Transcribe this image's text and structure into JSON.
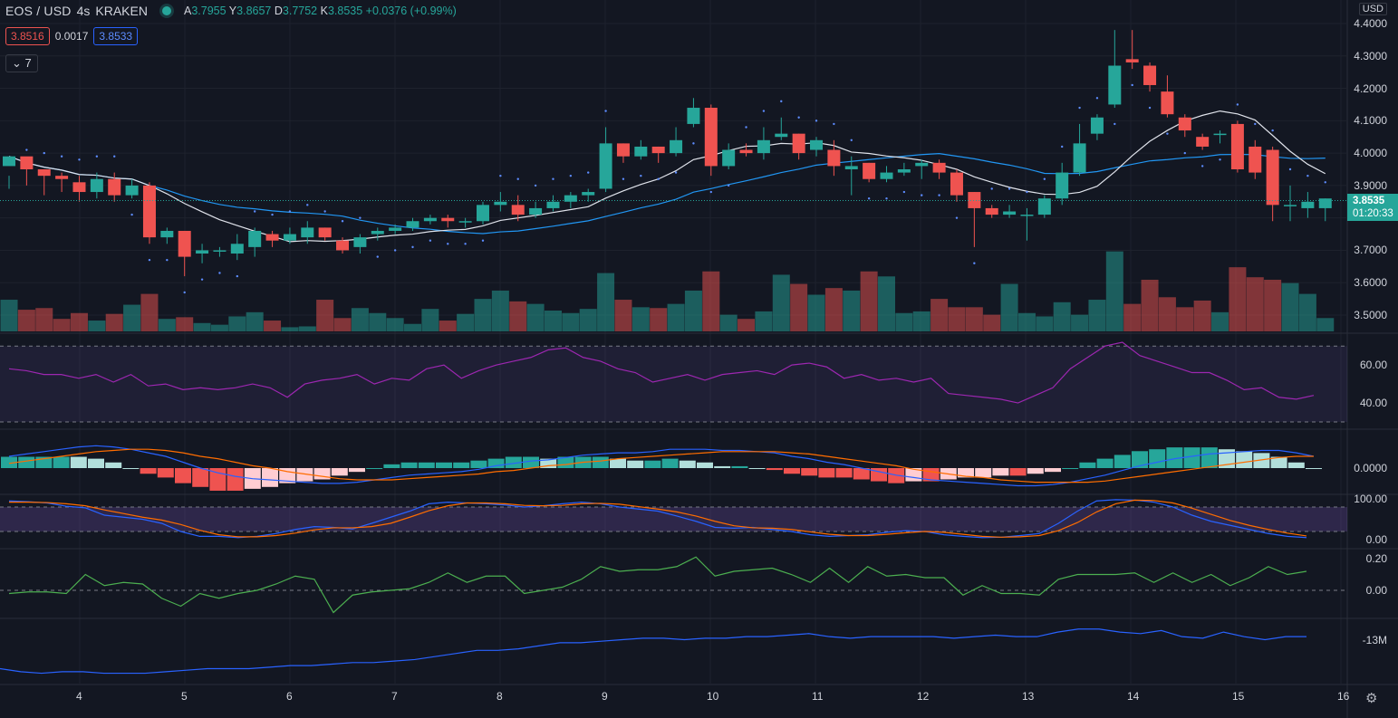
{
  "header": {
    "symbol": "EOS / USD",
    "interval": "4s",
    "exchange": "KRAKEN",
    "ohlc": {
      "open_label": "A",
      "open": "3.7955",
      "high_label": "Y",
      "high": "3.8657",
      "low_label": "D",
      "low": "3.7752",
      "close_label": "K",
      "close": "3.8535",
      "change": "+0.0376 (+0.99%)"
    },
    "sell_price": "3.8516",
    "spread": "0.0017",
    "buy_price": "3.8533",
    "collapse_label": "7"
  },
  "price_axis": {
    "currency": "USD",
    "labels": [
      "4.4000",
      "4.3000",
      "4.2000",
      "4.1000",
      "4.0000",
      "3.9000",
      "3.7000",
      "3.6000",
      "3.5000"
    ],
    "last_price": "3.8535",
    "countdown": "01:20:33"
  },
  "rsi_axis": [
    "60.00",
    "40.00"
  ],
  "macd_axis": [
    "0.0000"
  ],
  "stoch_axis": [
    "100.00",
    "0.00"
  ],
  "osc_axis": [
    "0.20",
    "0.00"
  ],
  "obv_axis": [
    "-13M"
  ],
  "time_axis": [
    "4",
    "5",
    "6",
    "7",
    "8",
    "9",
    "10",
    "11",
    "12",
    "13",
    "14",
    "15",
    "16"
  ],
  "colors": {
    "bg": "#131722",
    "up": "#26a69a",
    "down": "#ef5350",
    "grid": "#1e222d",
    "rsi": "#9c27b0",
    "macd": "#2962ff",
    "signal": "#ff6d00",
    "osc": "#4caf50",
    "obv": "#2962ff"
  },
  "chart_data": {
    "type": "candlestick",
    "candles": [
      [
        3.96,
        3.99,
        3.93,
        3.89
      ],
      [
        3.99,
        3.95,
        3.96,
        3.9
      ],
      [
        3.95,
        3.93,
        3.95,
        3.87
      ],
      [
        3.93,
        3.92,
        3.94,
        3.88
      ],
      [
        3.91,
        3.88,
        3.93,
        3.85
      ],
      [
        3.88,
        3.92,
        3.94,
        3.86
      ],
      [
        3.92,
        3.87,
        3.94,
        3.85
      ],
      [
        3.87,
        3.9,
        3.92,
        3.86
      ],
      [
        3.9,
        3.74,
        3.91,
        3.72
      ],
      [
        3.74,
        3.76,
        3.77,
        3.72
      ],
      [
        3.76,
        3.68,
        3.76,
        3.62
      ],
      [
        3.69,
        3.7,
        3.72,
        3.66
      ],
      [
        3.7,
        3.7,
        3.71,
        3.68
      ],
      [
        3.69,
        3.72,
        3.75,
        3.67
      ],
      [
        3.71,
        3.76,
        3.77,
        3.68
      ],
      [
        3.75,
        3.73,
        3.76,
        3.71
      ],
      [
        3.73,
        3.75,
        3.77,
        3.72
      ],
      [
        3.74,
        3.77,
        3.79,
        3.72
      ],
      [
        3.77,
        3.74,
        3.77,
        3.73
      ],
      [
        3.73,
        3.7,
        3.74,
        3.69
      ],
      [
        3.71,
        3.74,
        3.75,
        3.69
      ],
      [
        3.75,
        3.76,
        3.77,
        3.73
      ],
      [
        3.76,
        3.77,
        3.78,
        3.75
      ],
      [
        3.77,
        3.79,
        3.8,
        3.76
      ],
      [
        3.79,
        3.8,
        3.81,
        3.78
      ],
      [
        3.8,
        3.79,
        3.81,
        3.77
      ],
      [
        3.79,
        3.79,
        3.8,
        3.77
      ],
      [
        3.79,
        3.84,
        3.85,
        3.78
      ],
      [
        3.84,
        3.85,
        3.88,
        3.82
      ],
      [
        3.84,
        3.81,
        3.87,
        3.79
      ],
      [
        3.81,
        3.83,
        3.85,
        3.8
      ],
      [
        3.83,
        3.85,
        3.87,
        3.82
      ],
      [
        3.85,
        3.87,
        3.88,
        3.83
      ],
      [
        3.87,
        3.88,
        3.89,
        3.85
      ],
      [
        3.89,
        4.03,
        4.08,
        3.88
      ],
      [
        4.03,
        3.99,
        4.03,
        3.97
      ],
      [
        3.99,
        4.02,
        4.04,
        3.98
      ],
      [
        4.02,
        4.0,
        4.02,
        3.97
      ],
      [
        4.0,
        4.04,
        4.08,
        3.99
      ],
      [
        4.09,
        4.14,
        4.17,
        4.08
      ],
      [
        4.14,
        3.96,
        4.15,
        3.93
      ],
      [
        3.96,
        4.01,
        4.03,
        3.95
      ],
      [
        4.01,
        4.0,
        4.03,
        3.99
      ],
      [
        4.0,
        4.04,
        4.08,
        3.98
      ],
      [
        4.05,
        4.06,
        4.11,
        4.04
      ],
      [
        4.06,
        4.0,
        4.06,
        3.98
      ],
      [
        4.01,
        4.04,
        4.05,
        3.99
      ],
      [
        4.01,
        3.96,
        4.04,
        3.93
      ],
      [
        3.95,
        3.96,
        3.99,
        3.87
      ],
      [
        3.97,
        3.92,
        3.97,
        3.91
      ],
      [
        3.92,
        3.94,
        3.96,
        3.91
      ],
      [
        3.94,
        3.95,
        3.97,
        3.93
      ],
      [
        3.96,
        3.97,
        3.98,
        3.92
      ],
      [
        3.97,
        3.94,
        3.98,
        3.92
      ],
      [
        3.94,
        3.87,
        3.95,
        3.85
      ],
      [
        3.88,
        3.83,
        3.88,
        3.71
      ],
      [
        3.83,
        3.81,
        3.84,
        3.8
      ],
      [
        3.81,
        3.82,
        3.84,
        3.8
      ],
      [
        3.81,
        3.81,
        3.83,
        3.73
      ],
      [
        3.81,
        3.86,
        3.87,
        3.8
      ],
      [
        3.86,
        3.94,
        3.97,
        3.84
      ],
      [
        3.94,
        4.03,
        4.09,
        3.93
      ],
      [
        4.06,
        4.11,
        4.12,
        4.04
      ],
      [
        4.15,
        4.27,
        4.38,
        4.14
      ],
      [
        4.29,
        4.28,
        4.38,
        4.26
      ],
      [
        4.27,
        4.21,
        4.28,
        4.19
      ],
      [
        4.19,
        4.12,
        4.24,
        4.11
      ],
      [
        4.11,
        4.07,
        4.12,
        4.05
      ],
      [
        4.05,
        4.02,
        4.06,
        4.01
      ],
      [
        4.06,
        4.06,
        4.07,
        4.03
      ],
      [
        4.09,
        3.95,
        4.1,
        3.94
      ],
      [
        4.02,
        3.94,
        4.04,
        3.92
      ],
      [
        4.01,
        3.84,
        4.02,
        3.79
      ],
      [
        3.84,
        3.84,
        3.9,
        3.79
      ],
      [
        3.83,
        3.85,
        3.88,
        3.8
      ],
      [
        3.83,
        3.86,
        3.86,
        3.79
      ]
    ],
    "volume": [
      38,
      26,
      28,
      15,
      22,
      13,
      21,
      32,
      45,
      15,
      17,
      10,
      8,
      18,
      23,
      13,
      5,
      6,
      38,
      16,
      28,
      22,
      16,
      9,
      27,
      13,
      21,
      39,
      49,
      36,
      33,
      25,
      22,
      27,
      70,
      38,
      29,
      28,
      33,
      49,
      72,
      20,
      15,
      24,
      68,
      57,
      44,
      52,
      49,
      72,
      66,
      22,
      24,
      39,
      29,
      29,
      20,
      57,
      22,
      18,
      35,
      20,
      38,
      96,
      33,
      62,
      41,
      29,
      37,
      23,
      77,
      65,
      62,
      58,
      45,
      16
    ],
    "rsi": [
      58,
      57,
      55,
      55,
      53,
      55,
      51,
      55,
      49,
      50,
      47,
      48,
      47,
      48,
      50,
      48,
      43,
      50,
      52,
      53,
      55,
      50,
      53,
      52,
      58,
      60,
      53,
      57,
      60,
      62,
      64,
      68,
      69,
      64,
      62,
      58,
      56,
      51,
      53,
      55,
      52,
      55,
      56,
      57,
      55,
      60,
      61,
      59,
      53,
      55,
      52,
      53,
      51,
      53,
      45,
      44,
      43,
      42,
      40,
      44,
      48,
      58,
      64,
      70,
      72,
      65,
      62,
      59,
      56,
      56,
      52,
      47,
      48,
      43,
      42,
      44
    ],
    "rsi_range": [
      30,
      72
    ],
    "macd": [
      0.01,
      0.012,
      0.014,
      0.016,
      0.018,
      0.019,
      0.018,
      0.016,
      0.013,
      0.01,
      0.005,
      0.0,
      -0.004,
      -0.007,
      -0.009,
      -0.01,
      -0.011,
      -0.012,
      -0.013,
      -0.013,
      -0.012,
      -0.01,
      -0.008,
      -0.006,
      -0.005,
      -0.004,
      -0.003,
      -0.001,
      0.002,
      0.004,
      0.006,
      0.007,
      0.009,
      0.011,
      0.012,
      0.013,
      0.013,
      0.014,
      0.016,
      0.016,
      0.016,
      0.015,
      0.015,
      0.014,
      0.013,
      0.01,
      0.008,
      0.005,
      0.003,
      0.0,
      -0.003,
      -0.006,
      -0.008,
      -0.01,
      -0.011,
      -0.012,
      -0.013,
      -0.014,
      -0.015,
      -0.015,
      -0.014,
      -0.012,
      -0.009,
      -0.006,
      -0.002,
      0.002,
      0.005,
      0.008,
      0.01,
      0.012,
      0.013,
      0.014,
      0.015,
      0.015,
      0.013,
      0.01
    ],
    "macd_signal": [
      0.004,
      0.006,
      0.008,
      0.01,
      0.012,
      0.014,
      0.015,
      0.016,
      0.016,
      0.015,
      0.013,
      0.01,
      0.008,
      0.005,
      0.002,
      0.0,
      -0.003,
      -0.005,
      -0.007,
      -0.009,
      -0.01,
      -0.01,
      -0.01,
      -0.009,
      -0.008,
      -0.007,
      -0.006,
      -0.005,
      -0.003,
      -0.002,
      0.0,
      0.002,
      0.003,
      0.005,
      0.006,
      0.008,
      0.009,
      0.01,
      0.011,
      0.012,
      0.013,
      0.014,
      0.014,
      0.014,
      0.014,
      0.013,
      0.012,
      0.01,
      0.008,
      0.006,
      0.004,
      0.002,
      -0.001,
      -0.003,
      -0.005,
      -0.007,
      -0.008,
      -0.01,
      -0.011,
      -0.012,
      -0.012,
      -0.012,
      -0.012,
      -0.011,
      -0.009,
      -0.007,
      -0.005,
      -0.003,
      -0.001,
      0.001,
      0.003,
      0.005,
      0.007,
      0.009,
      0.01,
      0.01
    ],
    "stoch_k": [
      95,
      93,
      90,
      82,
      78,
      60,
      55,
      50,
      40,
      20,
      8,
      8,
      5,
      8,
      15,
      25,
      32,
      30,
      26,
      40,
      55,
      70,
      88,
      92,
      90,
      88,
      85,
      80,
      83,
      88,
      92,
      88,
      80,
      75,
      70,
      58,
      45,
      30,
      28,
      30,
      25,
      20,
      12,
      8,
      10,
      12,
      18,
      22,
      20,
      12,
      8,
      5,
      6,
      10,
      15,
      40,
      70,
      95,
      98,
      97,
      92,
      80,
      60,
      45,
      35,
      25,
      15,
      8,
      5
    ],
    "stoch_d": [
      92,
      92,
      91,
      88,
      83,
      73,
      64,
      55,
      48,
      37,
      23,
      12,
      7,
      7,
      10,
      16,
      24,
      29,
      29,
      32,
      40,
      55,
      71,
      83,
      90,
      90,
      88,
      84,
      83,
      84,
      88,
      89,
      87,
      81,
      75,
      68,
      58,
      45,
      34,
      29,
      28,
      25,
      19,
      13,
      10,
      10,
      13,
      17,
      20,
      18,
      13,
      8,
      6,
      7,
      10,
      22,
      42,
      68,
      88,
      97,
      96,
      90,
      77,
      62,
      47,
      35,
      25,
      16,
      9
    ],
    "stoch_upper": 80,
    "stoch_lower": 20,
    "osc": [
      -0.02,
      -0.01,
      -0.01,
      -0.02,
      0.1,
      0.03,
      0.05,
      0.04,
      -0.05,
      -0.1,
      -0.02,
      -0.05,
      -0.02,
      0.0,
      0.04,
      0.09,
      0.07,
      -0.14,
      -0.03,
      -0.01,
      0.0,
      0.01,
      0.05,
      0.11,
      0.05,
      0.09,
      0.09,
      -0.02,
      0.0,
      0.02,
      0.07,
      0.15,
      0.12,
      0.13,
      0.13,
      0.15,
      0.21,
      0.09,
      0.12,
      0.13,
      0.14,
      0.1,
      0.05,
      0.14,
      0.05,
      0.15,
      0.09,
      0.1,
      0.08,
      0.08,
      -0.03,
      0.03,
      -0.02,
      -0.02,
      -0.03,
      0.07,
      0.1,
      0.1,
      0.1,
      0.11,
      0.05,
      0.11,
      0.05,
      0.1,
      0.03,
      0.08,
      0.15,
      0.1,
      0.12
    ],
    "osc_range": [
      -0.16,
      0.24
    ],
    "obv": [
      -22,
      -24,
      -25,
      -24,
      -24,
      -25,
      -25,
      -25,
      -24,
      -23,
      -22,
      -22,
      -22,
      -21,
      -20,
      -20,
      -19,
      -18,
      -18,
      -17,
      -16,
      -14,
      -12,
      -10,
      -10,
      -9,
      -7,
      -5,
      -5,
      -4,
      -3,
      -2,
      -2,
      -3,
      -2,
      -2,
      -1,
      -1,
      0,
      1,
      -1,
      -2,
      -1,
      -1,
      -1,
      -1,
      -2,
      -1,
      0,
      -1,
      -1,
      2,
      4,
      4,
      2,
      1,
      3,
      -1,
      -2,
      2,
      -1,
      -3,
      -1,
      -1
    ],
    "obv_range": [
      -30,
      8
    ]
  }
}
